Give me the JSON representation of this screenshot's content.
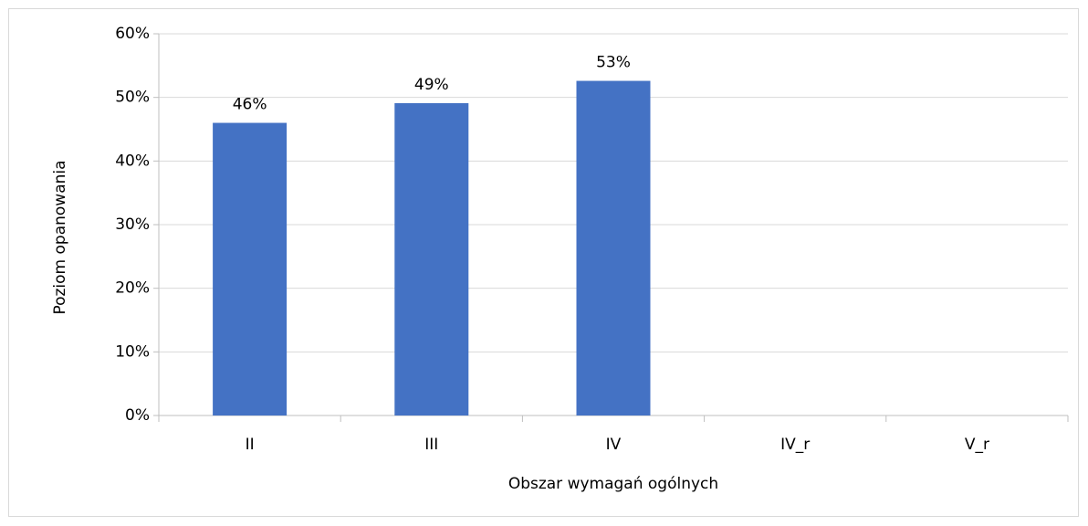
{
  "chart_data": {
    "type": "bar",
    "x_label": "Obszar wymagań ogólnych",
    "y_label": "Poziom opanowania",
    "categories": [
      "II",
      "III",
      "IV",
      "IV_r",
      "V_r"
    ],
    "values": [
      46,
      49.1,
      52.6,
      null,
      null
    ],
    "value_labels": [
      "46%",
      "49%",
      "53%",
      null,
      null
    ],
    "color": "#4472c4",
    "ylim": [
      0,
      60
    ],
    "yticks": [
      {
        "value": 0,
        "label": "0%"
      },
      {
        "value": 10,
        "label": "10%"
      },
      {
        "value": 20,
        "label": "20%"
      },
      {
        "value": 30,
        "label": "30%"
      },
      {
        "value": 40,
        "label": "40%"
      },
      {
        "value": 50,
        "label": "50%"
      },
      {
        "value": 60,
        "label": "60%"
      }
    ],
    "grid": true
  }
}
